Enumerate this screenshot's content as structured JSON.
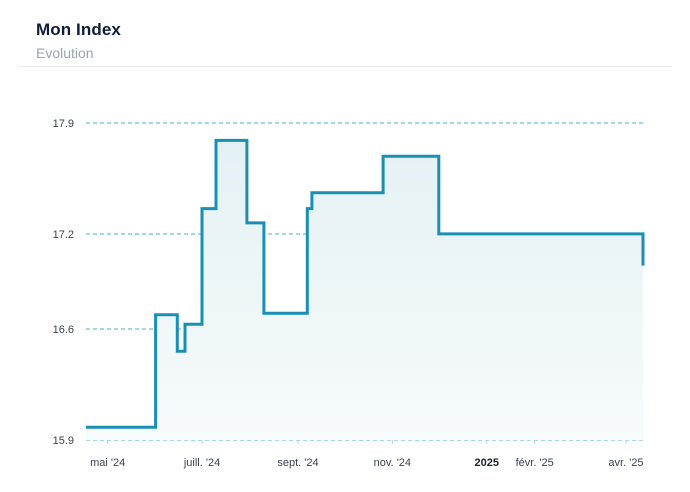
{
  "header": {
    "title": "Mon Index",
    "subtitle": "Evolution"
  },
  "colors": {
    "line": "#1a8fb5",
    "area_top": "#e4f1f4",
    "area_bottom": "#f7fbfc",
    "grid": "#46b3c6",
    "axis_text": "#3a4150"
  },
  "chart_data": {
    "type": "area",
    "step": true,
    "title": "Mon Index",
    "subtitle": "Evolution",
    "xlabel": "",
    "ylabel": "",
    "grid": true,
    "legend": "none",
    "y_ticks": [
      15.9,
      16.6,
      17.2,
      17.9
    ],
    "y_tick_labels": [
      "15.9",
      "16.6",
      "17.2",
      "17.9"
    ],
    "ylim": [
      15.9,
      17.9
    ],
    "x_ticks": [
      {
        "date": "2024-05-01",
        "label": "mai '24",
        "bold": false
      },
      {
        "date": "2024-07-01",
        "label": "juill. '24",
        "bold": false
      },
      {
        "date": "2024-09-01",
        "label": "sept. '24",
        "bold": false
      },
      {
        "date": "2024-11-01",
        "label": "nov. '24",
        "bold": false
      },
      {
        "date": "2025-01-01",
        "label": "2025",
        "bold": true
      },
      {
        "date": "2025-02-01",
        "label": "févr. '25",
        "bold": false
      },
      {
        "date": "2025-04-01",
        "label": "avr. '25",
        "bold": false
      }
    ],
    "xlim": [
      "2024-04-17",
      "2025-04-12"
    ],
    "series": [
      {
        "points": [
          {
            "x": "2024-04-17",
            "y": 15.98
          },
          {
            "x": "2024-06-01",
            "y": 16.69
          },
          {
            "x": "2024-06-15",
            "y": 16.46
          },
          {
            "x": "2024-06-20",
            "y": 16.63
          },
          {
            "x": "2024-07-01",
            "y": 17.36
          },
          {
            "x": "2024-07-10",
            "y": 17.79
          },
          {
            "x": "2024-07-30",
            "y": 17.27
          },
          {
            "x": "2024-08-10",
            "y": 16.7
          },
          {
            "x": "2024-09-07",
            "y": 17.36
          },
          {
            "x": "2024-09-10",
            "y": 17.46
          },
          {
            "x": "2024-10-26",
            "y": 17.69
          },
          {
            "x": "2024-12-01",
            "y": 17.2
          },
          {
            "x": "2025-04-12",
            "y": 17.0
          }
        ]
      }
    ]
  }
}
